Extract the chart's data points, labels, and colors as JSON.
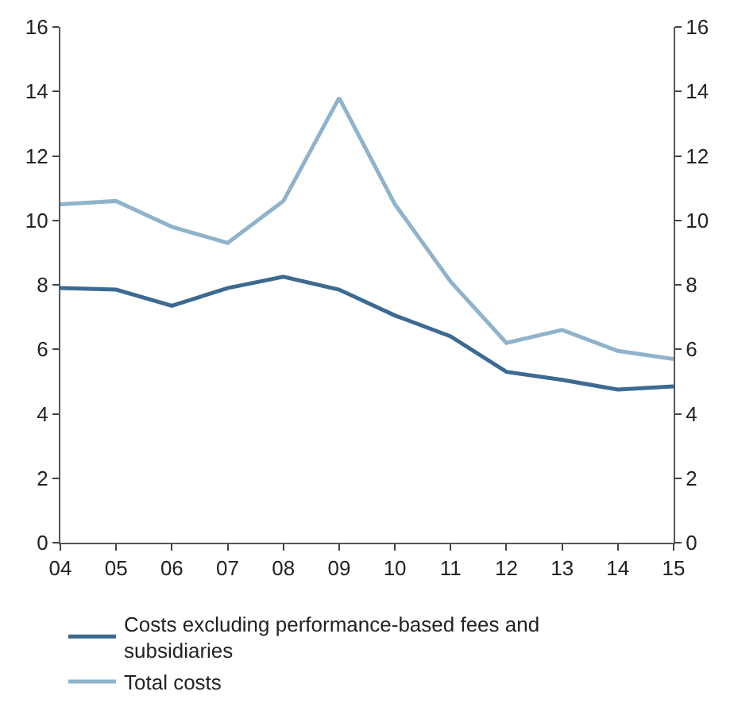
{
  "chart_data": {
    "type": "line",
    "categories": [
      "04",
      "05",
      "06",
      "07",
      "08",
      "09",
      "10",
      "11",
      "12",
      "13",
      "14",
      "15"
    ],
    "series": [
      {
        "name": "Costs excluding performance-based fees and subsidiaries",
        "color": "#3d6a91",
        "values": [
          7.9,
          7.85,
          7.35,
          7.9,
          8.25,
          7.85,
          7.05,
          6.4,
          5.3,
          5.05,
          4.75,
          4.85
        ]
      },
      {
        "name": "Total costs",
        "color": "#8fb3cb",
        "values": [
          10.5,
          10.6,
          9.8,
          9.3,
          10.6,
          13.8,
          10.5,
          8.1,
          6.2,
          6.6,
          5.95,
          5.7
        ]
      }
    ],
    "ylim": [
      0,
      16
    ],
    "yticks": [
      0,
      2,
      4,
      6,
      8,
      10,
      12,
      14,
      16
    ],
    "y2lim": [
      0,
      16
    ],
    "y2ticks": [
      0,
      2,
      4,
      6,
      8,
      10,
      12,
      14,
      16
    ],
    "legend": "bottom",
    "marker": "none",
    "line_style": "solid"
  }
}
